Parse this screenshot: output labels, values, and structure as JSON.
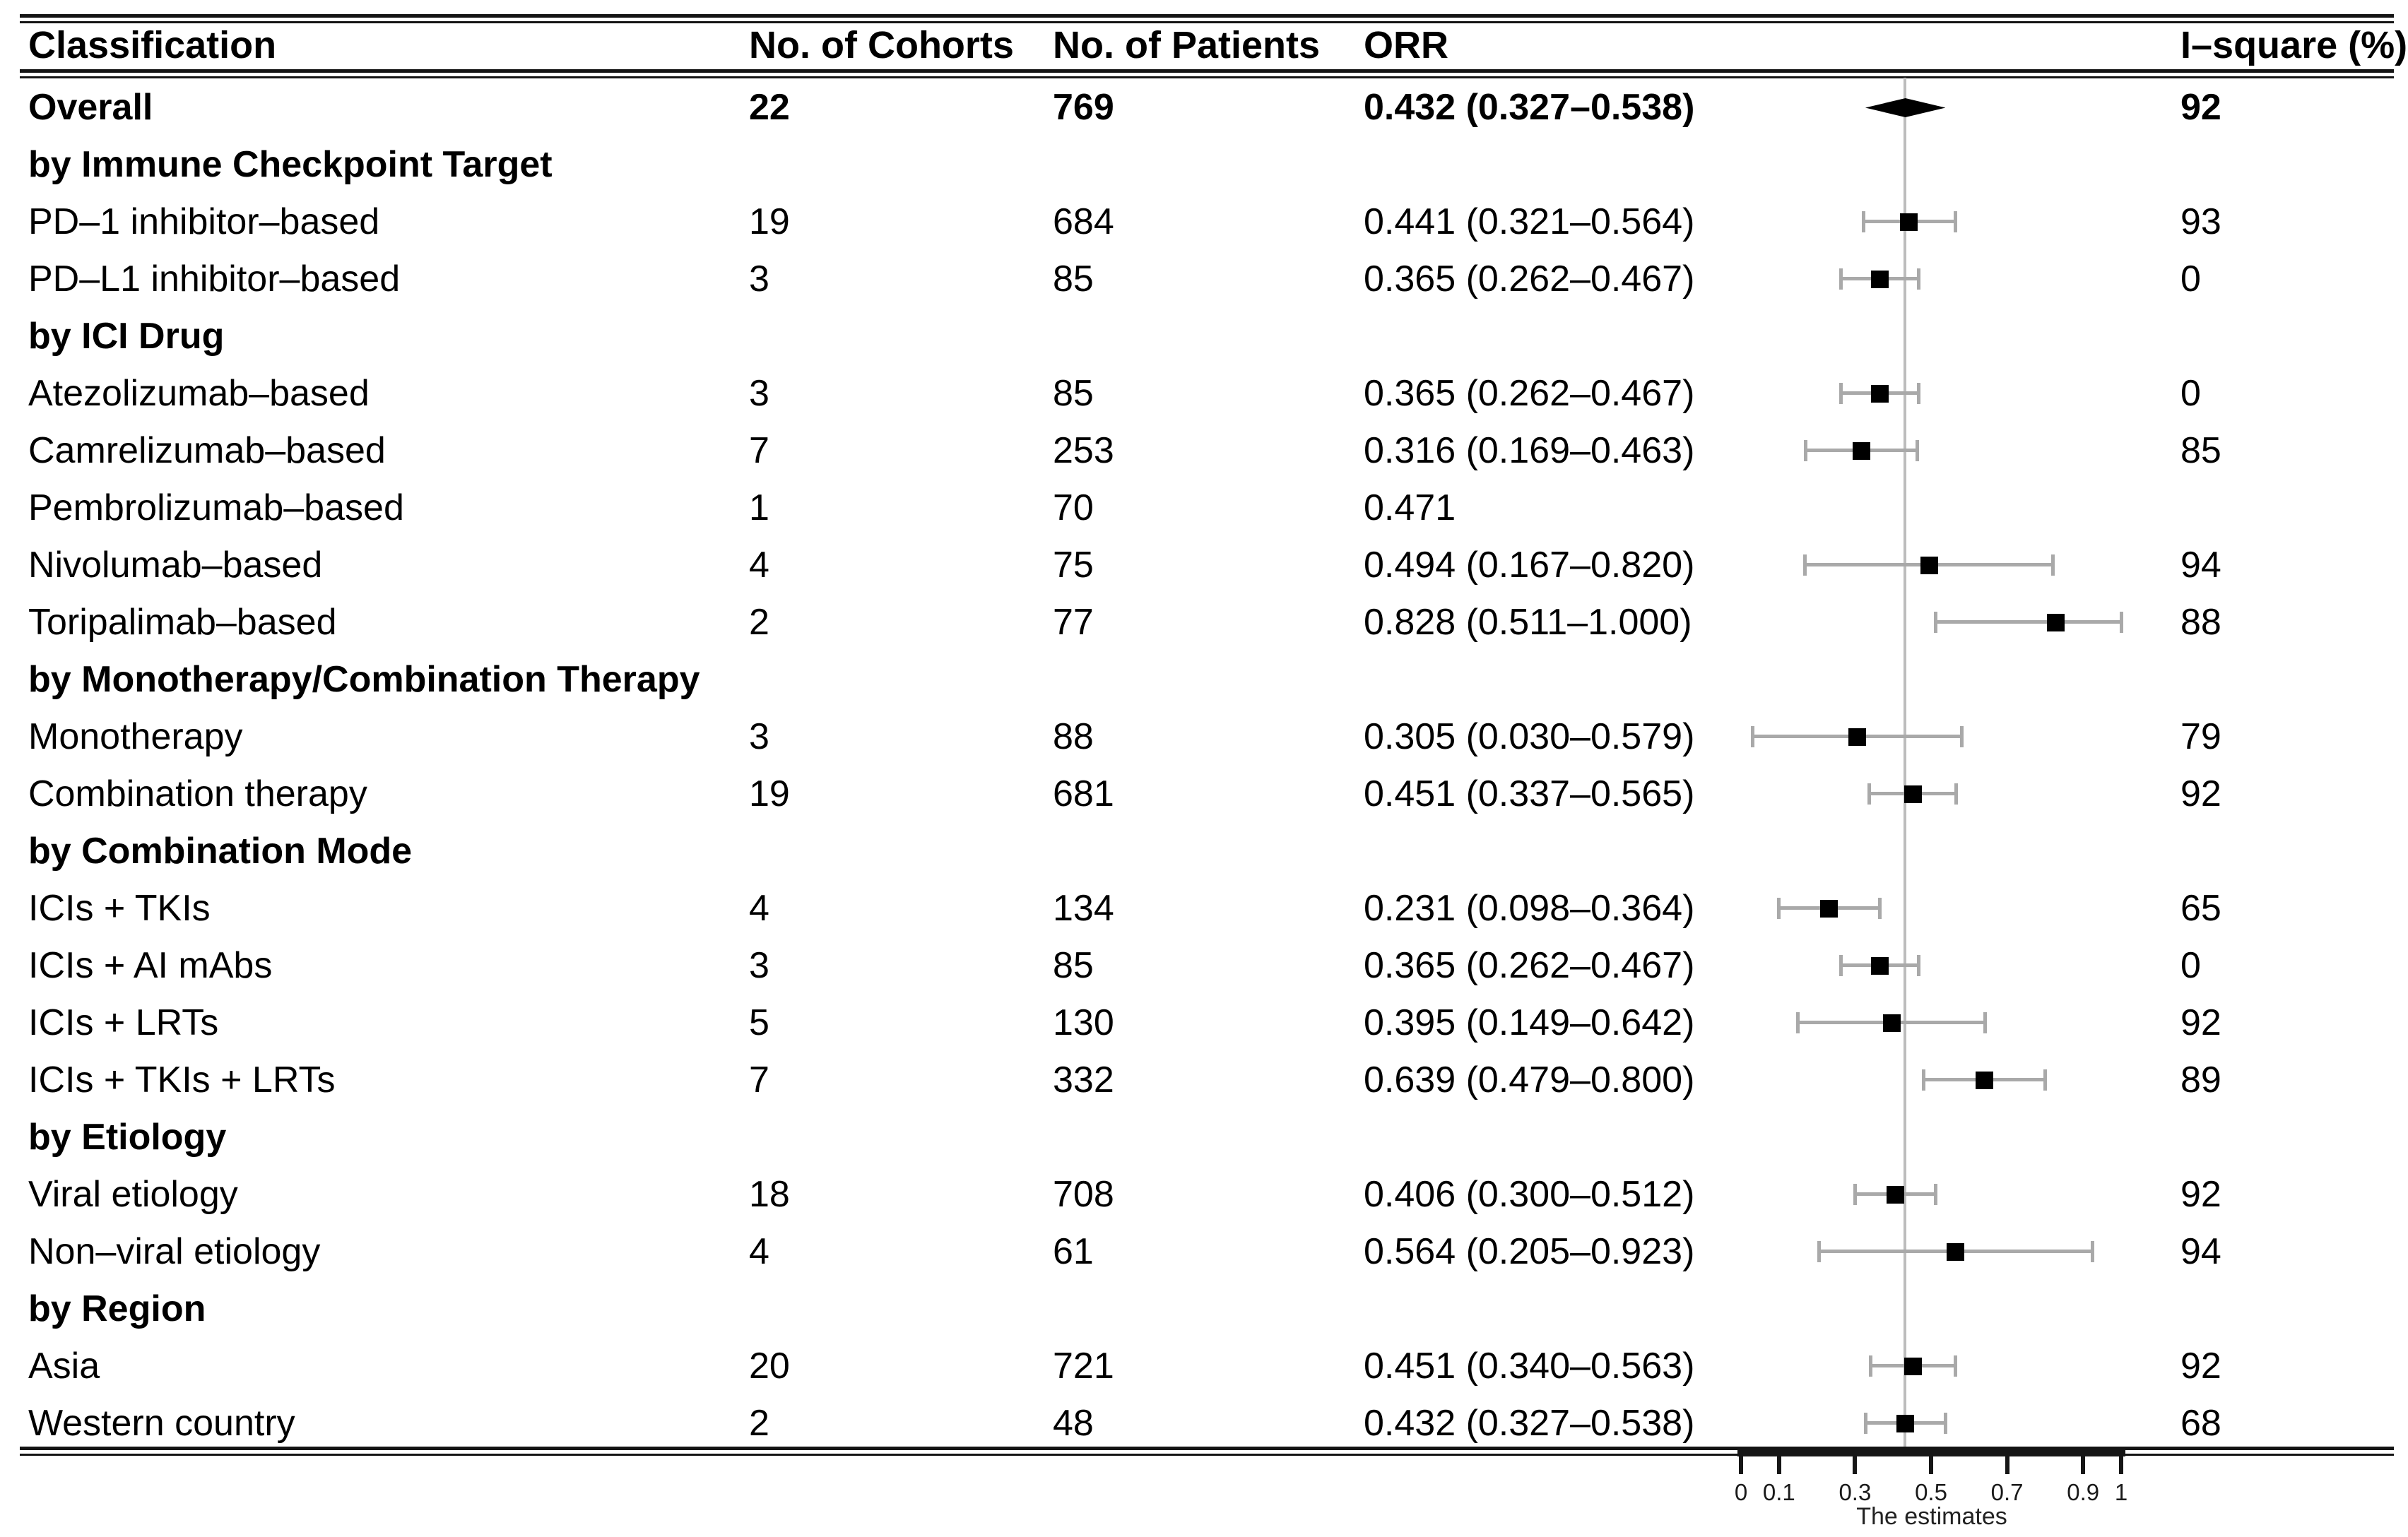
{
  "chart_data": {
    "type": "scatter",
    "variant": "forest-plot",
    "title": "",
    "xlabel": "The estimates",
    "xlim": [
      0,
      1
    ],
    "x_ticks": [
      0,
      0.1,
      0.3,
      0.5,
      0.7,
      0.9,
      1
    ],
    "x_tick_labels": [
      "0",
      "0.1",
      "0.3",
      "0.5",
      "0.7",
      "0.9",
      "1"
    ],
    "reference_line": 0.432,
    "grid": false,
    "colors": {
      "marker": "#000000",
      "ci_whisker": "#a9a9a9",
      "reference_line": "#bcbcbc",
      "rule": "#141414",
      "text": "#000000"
    },
    "columns": [
      "Classification",
      "No. of Cohorts",
      "No. of Patients",
      "ORR",
      "I–square (%)"
    ],
    "rows": [
      {
        "kind": "summary",
        "label": "Overall",
        "cohorts": "22",
        "patients": "769",
        "orr_text": "0.432 (0.327–0.538)",
        "i_square": "92",
        "estimate": 0.432,
        "ci_low": 0.327,
        "ci_high": 0.538,
        "marker": "diamond"
      },
      {
        "kind": "section",
        "label": "by Immune Checkpoint Target"
      },
      {
        "kind": "study",
        "label": "PD–1 inhibitor–based",
        "cohorts": "19",
        "patients": "684",
        "orr_text": "0.441 (0.321–0.564)",
        "i_square": "93",
        "estimate": 0.441,
        "ci_low": 0.321,
        "ci_high": 0.564,
        "marker": "square"
      },
      {
        "kind": "study",
        "label": "PD–L1 inhibitor–based",
        "cohorts": "3",
        "patients": "85",
        "orr_text": "0.365 (0.262–0.467)",
        "i_square": "0",
        "estimate": 0.365,
        "ci_low": 0.262,
        "ci_high": 0.467,
        "marker": "square"
      },
      {
        "kind": "section",
        "label": "by ICI Drug"
      },
      {
        "kind": "study",
        "label": "Atezolizumab–based",
        "cohorts": "3",
        "patients": "85",
        "orr_text": "0.365 (0.262–0.467)",
        "i_square": "0",
        "estimate": 0.365,
        "ci_low": 0.262,
        "ci_high": 0.467,
        "marker": "square"
      },
      {
        "kind": "study",
        "label": "Camrelizumab–based",
        "cohorts": "7",
        "patients": "253",
        "orr_text": "0.316 (0.169–0.463)",
        "i_square": "85",
        "estimate": 0.316,
        "ci_low": 0.169,
        "ci_high": 0.463,
        "marker": "square"
      },
      {
        "kind": "study",
        "label": "Pembrolizumab–based",
        "cohorts": "1",
        "patients": "70",
        "orr_text": "0.471",
        "i_square": "",
        "estimate": 0.471,
        "ci_low": null,
        "ci_high": null,
        "marker": "none"
      },
      {
        "kind": "study",
        "label": "Nivolumab–based",
        "cohorts": "4",
        "patients": "75",
        "orr_text": "0.494 (0.167–0.820)",
        "i_square": "94",
        "estimate": 0.494,
        "ci_low": 0.167,
        "ci_high": 0.82,
        "marker": "square"
      },
      {
        "kind": "study",
        "label": "Toripalimab–based",
        "cohorts": "2",
        "patients": "77",
        "orr_text": "0.828 (0.511–1.000)",
        "i_square": "88",
        "estimate": 0.828,
        "ci_low": 0.511,
        "ci_high": 1.0,
        "marker": "square"
      },
      {
        "kind": "section",
        "label": "by Monotherapy/Combination Therapy"
      },
      {
        "kind": "study",
        "label": "Monotherapy",
        "cohorts": "3",
        "patients": "88",
        "orr_text": "0.305 (0.030–0.579)",
        "i_square": "79",
        "estimate": 0.305,
        "ci_low": 0.03,
        "ci_high": 0.579,
        "marker": "square"
      },
      {
        "kind": "study",
        "label": "Combination therapy",
        "cohorts": "19",
        "patients": "681",
        "orr_text": "0.451 (0.337–0.565)",
        "i_square": "92",
        "estimate": 0.451,
        "ci_low": 0.337,
        "ci_high": 0.565,
        "marker": "square"
      },
      {
        "kind": "section",
        "label": "by Combination Mode"
      },
      {
        "kind": "study",
        "label": "ICIs + TKIs",
        "cohorts": "4",
        "patients": "134",
        "orr_text": "0.231 (0.098–0.364)",
        "i_square": "65",
        "estimate": 0.231,
        "ci_low": 0.098,
        "ci_high": 0.364,
        "marker": "square"
      },
      {
        "kind": "study",
        "label": "ICIs + AI mAbs",
        "cohorts": "3",
        "patients": "85",
        "orr_text": "0.365 (0.262–0.467)",
        "i_square": "0",
        "estimate": 0.365,
        "ci_low": 0.262,
        "ci_high": 0.467,
        "marker": "square"
      },
      {
        "kind": "study",
        "label": "ICIs + LRTs",
        "cohorts": "5",
        "patients": "130",
        "orr_text": "0.395 (0.149–0.642)",
        "i_square": "92",
        "estimate": 0.395,
        "ci_low": 0.149,
        "ci_high": 0.642,
        "marker": "square"
      },
      {
        "kind": "study",
        "label": "ICIs + TKIs + LRTs",
        "cohorts": "7",
        "patients": "332",
        "orr_text": "0.639 (0.479–0.800)",
        "i_square": "89",
        "estimate": 0.639,
        "ci_low": 0.479,
        "ci_high": 0.8,
        "marker": "square"
      },
      {
        "kind": "section",
        "label": "by Etiology"
      },
      {
        "kind": "study",
        "label": "Viral etiology",
        "cohorts": "18",
        "patients": "708",
        "orr_text": "0.406 (0.300–0.512)",
        "i_square": "92",
        "estimate": 0.406,
        "ci_low": 0.3,
        "ci_high": 0.512,
        "marker": "square"
      },
      {
        "kind": "study",
        "label": "Non–viral etiology",
        "cohorts": "4",
        "patients": "61",
        "orr_text": "0.564 (0.205–0.923)",
        "i_square": "94",
        "estimate": 0.564,
        "ci_low": 0.205,
        "ci_high": 0.923,
        "marker": "square"
      },
      {
        "kind": "section",
        "label": "by Region"
      },
      {
        "kind": "study",
        "label": "Asia",
        "cohorts": "20",
        "patients": "721",
        "orr_text": "0.451 (0.340–0.563)",
        "i_square": "92",
        "estimate": 0.451,
        "ci_low": 0.34,
        "ci_high": 0.563,
        "marker": "square"
      },
      {
        "kind": "study",
        "label": "Western country",
        "cohorts": "2",
        "patients": "48",
        "orr_text": "0.432 (0.327–0.538)",
        "i_square": "68",
        "estimate": 0.432,
        "ci_low": 0.327,
        "ci_high": 0.538,
        "marker": "square"
      }
    ]
  }
}
